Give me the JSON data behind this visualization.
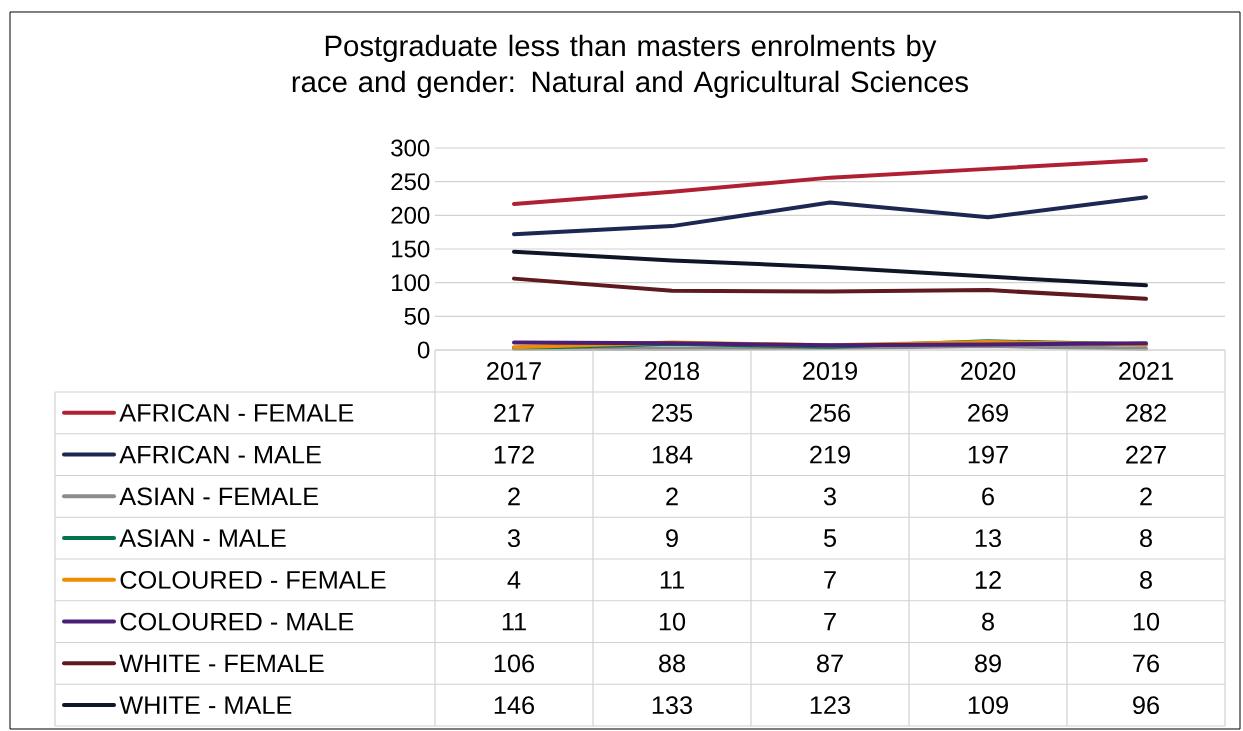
{
  "chart_data": {
    "type": "line",
    "title": "Postgraduate less than masters enrolments by race and gender: Natural and Agricultural Sciences",
    "categories": [
      "2017",
      "2018",
      "2019",
      "2020",
      "2021"
    ],
    "ylim": [
      0,
      300
    ],
    "yticks": [
      0,
      50,
      100,
      150,
      200,
      250,
      300
    ],
    "grid": "y",
    "legend": "bottom",
    "data_labels": true,
    "series": [
      {
        "name": "AFRICAN - FEMALE",
        "color": "#b02033",
        "values": [
          217,
          235,
          256,
          269,
          282
        ]
      },
      {
        "name": "AFRICAN - MALE",
        "color": "#1c2752",
        "values": [
          172,
          184,
          219,
          197,
          227
        ]
      },
      {
        "name": "ASIAN - FEMALE",
        "color": "#8c8c8c",
        "values": [
          2,
          2,
          3,
          6,
          2
        ]
      },
      {
        "name": "ASIAN - MALE",
        "color": "#007350",
        "values": [
          3,
          9,
          5,
          13,
          8
        ]
      },
      {
        "name": "COLOURED - FEMALE",
        "color": "#f08c00",
        "values": [
          4,
          11,
          7,
          12,
          8
        ]
      },
      {
        "name": "COLOURED - MALE",
        "color": "#4a1e78",
        "values": [
          11,
          10,
          7,
          8,
          10
        ]
      },
      {
        "name": "WHITE - FEMALE",
        "color": "#5e1a1e",
        "values": [
          106,
          88,
          87,
          89,
          76
        ]
      },
      {
        "name": "WHITE - MALE",
        "color": "#0e1628",
        "values": [
          146,
          133,
          123,
          109,
          96
        ]
      }
    ]
  }
}
